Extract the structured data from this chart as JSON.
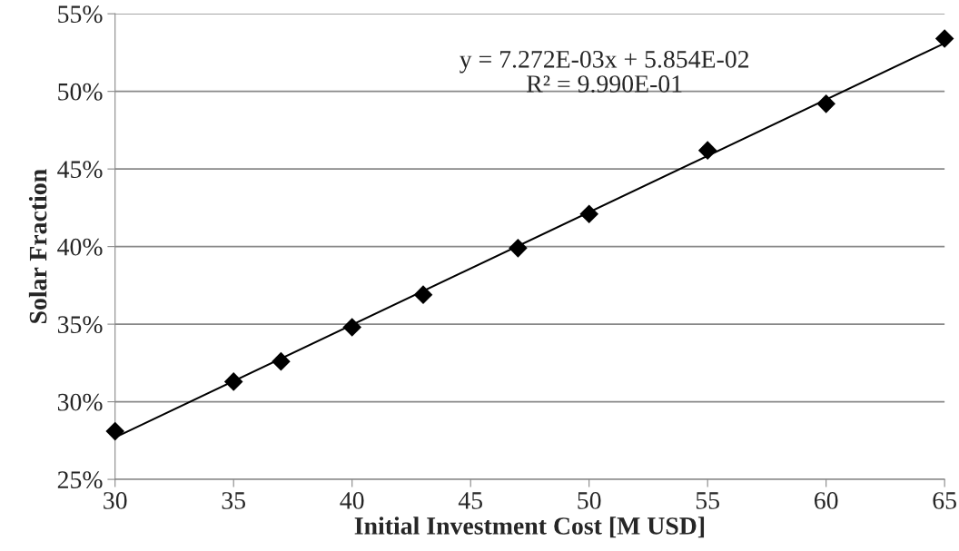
{
  "chart_data": {
    "type": "scatter",
    "xlabel": "Initial Investment Cost [M USD]",
    "ylabel": "Solar Fraction",
    "x": [
      30,
      35,
      37,
      40,
      43,
      47,
      50,
      55,
      60,
      65
    ],
    "series": [
      {
        "color": "#000000",
        "marker": "diamond",
        "values": [
          28.1,
          31.3,
          32.6,
          34.8,
          36.9,
          39.9,
          42.1,
          46.2,
          49.2,
          53.4
        ]
      },
      {
        "type": "line",
        "color": "#000000",
        "line_style": "solid",
        "marker": "none",
        "x": [
          30,
          65
        ],
        "values": [
          27.7,
          53.1
        ]
      }
    ],
    "annotations": [
      "y = 7.272E-03x + 5.854E-02",
      "R² = 9.990E-01"
    ],
    "xlim": [
      30,
      65
    ],
    "xticks": [
      30,
      35,
      40,
      45,
      50,
      55,
      60,
      65
    ],
    "ylim": [
      25,
      55
    ],
    "yticks": [
      {
        "value": 25,
        "label": "25%"
      },
      {
        "value": 30,
        "label": "30%"
      },
      {
        "value": 35,
        "label": "35%"
      },
      {
        "value": 40,
        "label": "40%"
      },
      {
        "value": 45,
        "label": "45%"
      },
      {
        "value": 50,
        "label": "50%"
      },
      {
        "value": 55,
        "label": "55%"
      }
    ],
    "grid": "y",
    "legend": false
  }
}
